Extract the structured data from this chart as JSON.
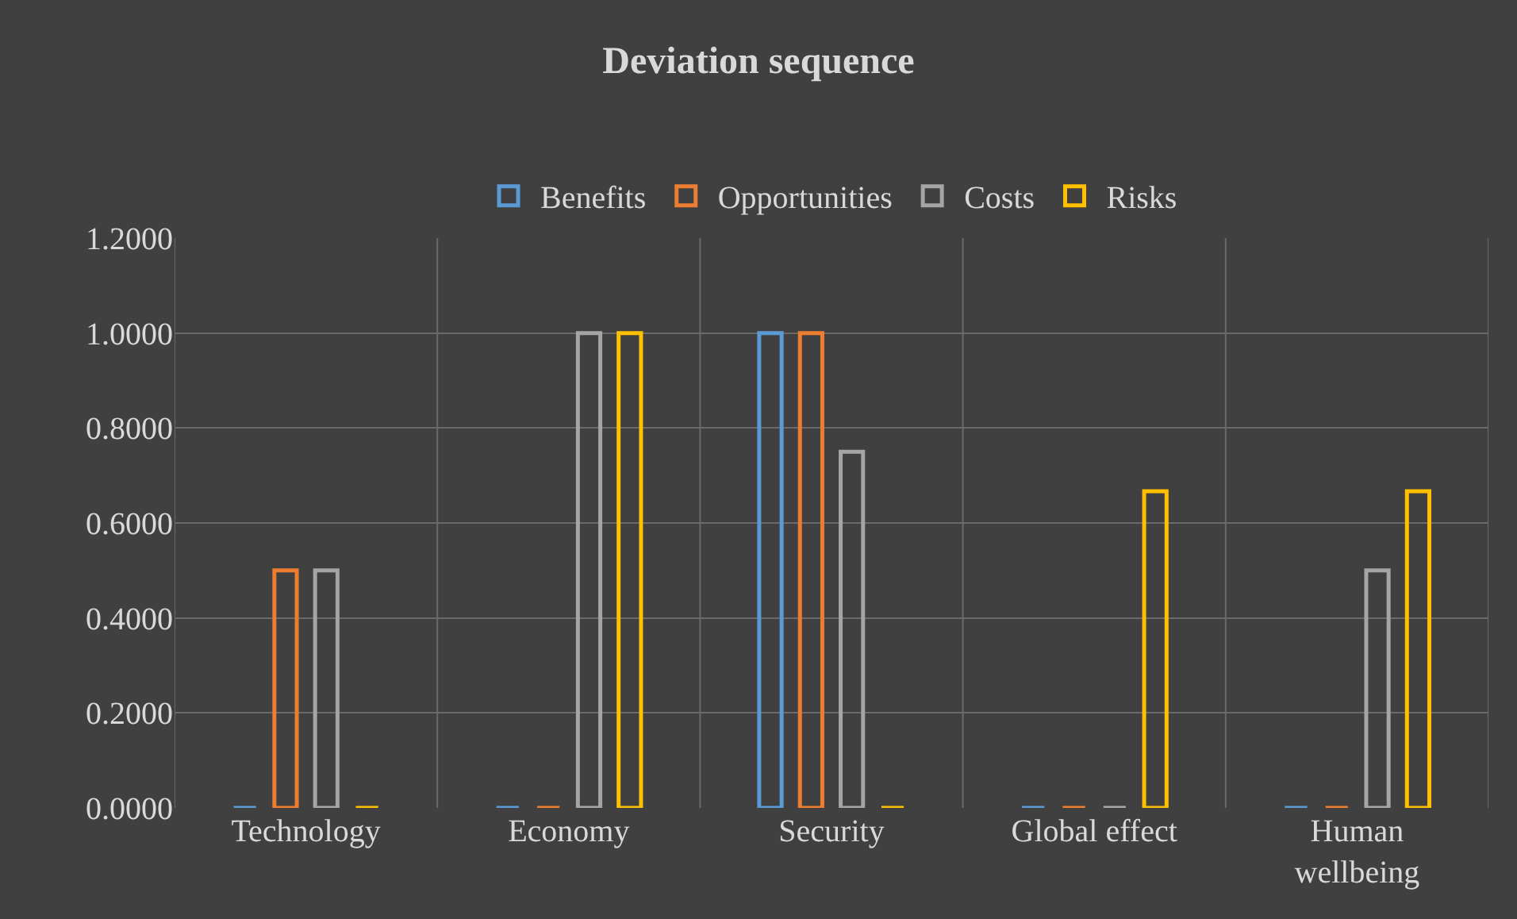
{
  "chart_data": {
    "type": "bar",
    "title": "Deviation sequence",
    "categories": [
      "Technology",
      "Economy",
      "Security",
      "Global effect",
      "Human wellbeing"
    ],
    "series": [
      {
        "name": "Benefits",
        "color": "#5b9bd5",
        "values": [
          0,
          0,
          1.0,
          0,
          0
        ]
      },
      {
        "name": "Opportunities",
        "color": "#ed7d31",
        "values": [
          0.5,
          0,
          1.0,
          0,
          0
        ]
      },
      {
        "name": "Costs",
        "color": "#a5a5a5",
        "values": [
          0.5,
          1.0,
          0.75,
          0,
          0.5
        ]
      },
      {
        "name": "Risks",
        "color": "#ffc000",
        "values": [
          0,
          1.0,
          0,
          0.667,
          0.667
        ]
      }
    ],
    "ylim": [
      0,
      1.2
    ],
    "yticks": [
      {
        "value": 0,
        "label": "0.0000"
      },
      {
        "value": 0.2,
        "label": "0.2000"
      },
      {
        "value": 0.4,
        "label": "0.4000"
      },
      {
        "value": 0.6,
        "label": "0.6000"
      },
      {
        "value": 0.8,
        "label": "0.8000"
      },
      {
        "value": 1.0,
        "label": "1.0000"
      },
      {
        "value": 1.2,
        "label": "1.2000"
      }
    ],
    "grid": true,
    "legend": "top"
  }
}
